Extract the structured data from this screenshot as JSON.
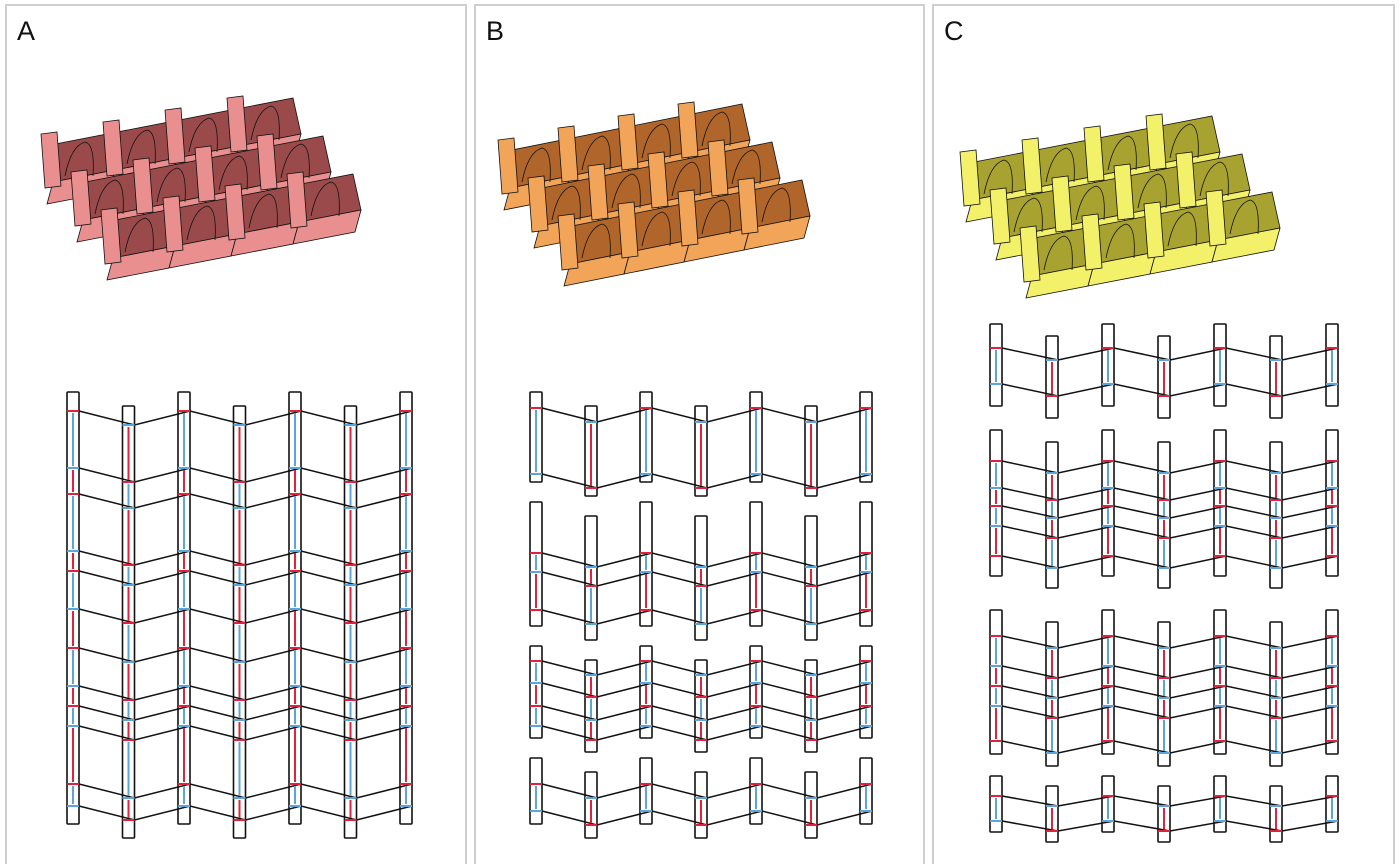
{
  "panels": [
    {
      "id": "a",
      "label": "A",
      "fill_color": "#e98f8f",
      "dark_color": "#9a4a4a",
      "crease_pattern": "uniform"
    },
    {
      "id": "b",
      "label": "B",
      "fill_color": "#f2a458",
      "dark_color": "#b0652a",
      "crease_pattern": "banded"
    },
    {
      "id": "c",
      "label": "C",
      "fill_color": "#f3f06a",
      "dark_color": "#a8a330",
      "crease_pattern": "separated"
    }
  ],
  "colors": {
    "mountain": "#e0233c",
    "valley": "#5aa6dc",
    "outline": "#111111"
  }
}
